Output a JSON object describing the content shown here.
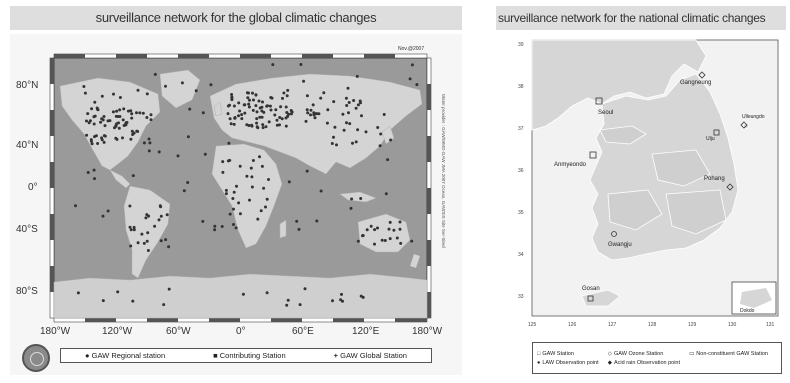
{
  "left": {
    "title": "surveillance network for the global climatic changes",
    "date_tag": "Nov.@2007",
    "side_note": "Water provider : GAW/WMO-GAW JMA 2007 Ocean, GAWSIS Site Ser-Sited",
    "lat_labels": [
      "80°N",
      "40°N",
      "0°",
      "40°S",
      "80°S"
    ],
    "lon_labels": [
      "180°W",
      "120°W",
      "60°W",
      "0°",
      "60°E",
      "120°E",
      "180°W"
    ],
    "legend": [
      {
        "symbol": "●",
        "label": "GAW Regional station"
      },
      {
        "symbol": "■",
        "label": "Contributing Station"
      },
      {
        "symbol": "+",
        "label": "GAW Global Station"
      }
    ]
  },
  "right": {
    "title": "surveillance network for the national climatic changes",
    "lat_ticks": [
      "39",
      "38",
      "37",
      "36",
      "35",
      "34",
      "33"
    ],
    "lon_ticks": [
      "125",
      "126",
      "127",
      "128",
      "129",
      "130",
      "131"
    ],
    "places": [
      {
        "name": "Seoul"
      },
      {
        "name": "Gangneung"
      },
      {
        "name": "Ulleungdo"
      },
      {
        "name": "Ulju"
      },
      {
        "name": "Anmyeondo"
      },
      {
        "name": "Pohang"
      },
      {
        "name": "Gwangju"
      },
      {
        "name": "Gosan"
      },
      {
        "name": "Dokdo"
      }
    ],
    "legend": [
      {
        "symbol": "□",
        "label": "GAW Station"
      },
      {
        "symbol": "◇",
        "label": "GAW Ozone Station"
      },
      {
        "symbol": "▭",
        "label": "Non-constituent GAW Station"
      },
      {
        "symbol": "●",
        "label": "LAW Observation point"
      },
      {
        "symbol": "◆",
        "label": "Acid rain Observation point"
      }
    ]
  },
  "colors": {
    "ocean": "#9a9a9a",
    "land": "#d4d4d4",
    "antarctica": "#cfcfcf",
    "station": "#333333",
    "korea_land": "#d6d6d6",
    "korea_sea": "#f2f2f2"
  }
}
